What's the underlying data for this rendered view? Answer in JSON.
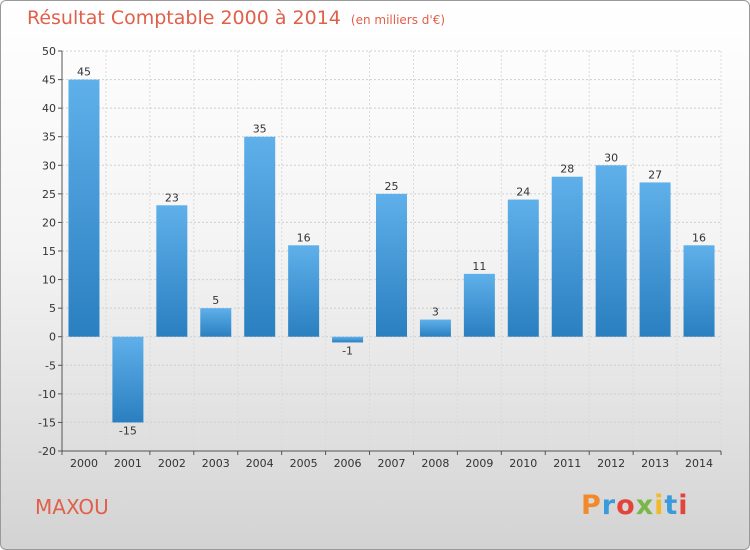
{
  "header": {
    "title": "Résultat Comptable 2000 à 2014",
    "subtitle": "(en milliers d'€)"
  },
  "footer": {
    "town": "MAXOU",
    "brand": "Proxiti"
  },
  "colors": {
    "title": "#e0604a",
    "bar_top": "#5fb0ea",
    "bar_bottom": "#2a7fc0",
    "brand_letters": [
      "#f28a2b",
      "#3b9ad9",
      "#e2433a",
      "#7ab648",
      "#f2b92b",
      "#3b9ad9",
      "#e2433a"
    ]
  },
  "chart_data": {
    "type": "bar",
    "title": "Résultat Comptable 2000 à 2014",
    "subtitle": "(en milliers d'€)",
    "categories": [
      "2000",
      "2001",
      "2002",
      "2003",
      "2004",
      "2005",
      "2006",
      "2007",
      "2008",
      "2009",
      "2010",
      "2011",
      "2012",
      "2013",
      "2014"
    ],
    "values": [
      45,
      -15,
      23,
      5,
      35,
      16,
      -1,
      25,
      3,
      11,
      24,
      28,
      30,
      27,
      16
    ],
    "value_labels": [
      "45",
      "-15",
      "23",
      "5",
      "35",
      "16",
      "-1",
      "25",
      "3",
      "11",
      "24",
      "28",
      "30",
      "27",
      "16"
    ],
    "ylim": [
      -20,
      50
    ],
    "yticks": [
      -20,
      -15,
      -10,
      -5,
      0,
      5,
      10,
      15,
      20,
      25,
      30,
      35,
      40,
      45,
      50
    ],
    "ytick_labels": [
      "-20",
      "-15",
      "-10",
      "-5",
      "0",
      "5",
      "10",
      "15",
      "20",
      "25",
      "30",
      "35",
      "40",
      "45",
      "50"
    ],
    "grid": true,
    "legend": "none"
  }
}
